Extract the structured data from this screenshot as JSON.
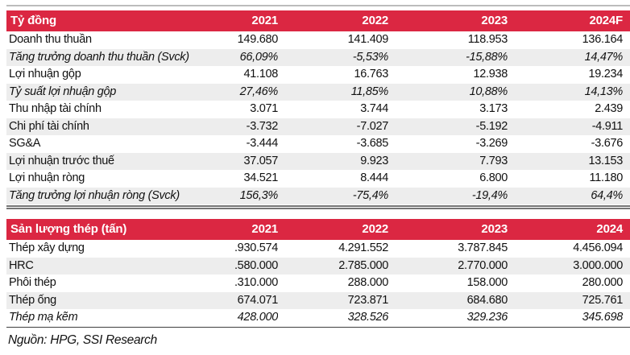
{
  "accent_color": "#db2742",
  "stripe_color": "#ededed",
  "tables": [
    {
      "header": {
        "label": "Tỷ đồng",
        "columns": [
          "2021",
          "2022",
          "2023",
          "2024F"
        ]
      },
      "rows": [
        {
          "label": "Doanh thu thuần",
          "italic": false,
          "cells": [
            "149.680",
            "141.409",
            "118.953",
            "136.164"
          ]
        },
        {
          "label": "Tăng trưởng doanh thu thuần (Svck)",
          "italic": true,
          "cells": [
            "66,09%",
            "-5,53%",
            "-15,88%",
            "14,47%"
          ]
        },
        {
          "label": "Lợi nhuận gộp",
          "italic": false,
          "cells": [
            "41.108",
            "16.763",
            "12.938",
            "19.234"
          ]
        },
        {
          "label": "Tỷ suất lợi nhuận gộp",
          "italic": true,
          "cells": [
            "27,46%",
            "11,85%",
            "10,88%",
            "14,13%"
          ]
        },
        {
          "label": "Thu nhập tài chính",
          "italic": false,
          "cells": [
            "3.071",
            "3.744",
            "3.173",
            "2.439"
          ]
        },
        {
          "label": "Chi phí tài chính",
          "italic": false,
          "cells": [
            "-3.732",
            "-7.027",
            "-5.192",
            "-4.911"
          ]
        },
        {
          "label": "SG&A",
          "italic": false,
          "cells": [
            "-3.444",
            "-3.685",
            "-3.269",
            "-3.676"
          ]
        },
        {
          "label": "Lợi nhuận trước thuế",
          "italic": false,
          "cells": [
            "37.057",
            "9.923",
            "7.793",
            "13.153"
          ]
        },
        {
          "label": "Lợi nhuận ròng",
          "italic": false,
          "cells": [
            "34.521",
            "8.444",
            "6.800",
            "11.180"
          ]
        },
        {
          "label": "Tăng trưởng lợi nhuận ròng (Svck)",
          "italic": true,
          "cells": [
            "156,3%",
            "-75,4%",
            "-19,4%",
            "64,4%"
          ]
        }
      ]
    },
    {
      "header": {
        "label": "Sản lượng thép (tấn)",
        "columns": [
          "2021",
          "2022",
          "2023",
          "2024"
        ]
      },
      "rows": [
        {
          "label": "Thép xây dựng",
          "italic": false,
          "cells": [
            ".930.574",
            "4.291.552",
            "3.787.845",
            "4.456.094"
          ]
        },
        {
          "label": "HRC",
          "italic": false,
          "cells": [
            ".580.000",
            "2.785.000",
            "2.770.000",
            "3.000.000"
          ]
        },
        {
          "label": "Phôi thép",
          "italic": false,
          "cells": [
            ".310.000",
            "288.000",
            "158.000",
            "280.000"
          ]
        },
        {
          "label": "Thép ống",
          "italic": false,
          "cells": [
            "674.071",
            "723.871",
            "684.680",
            "725.761"
          ]
        },
        {
          "label": "Thép mạ kẽm",
          "italic": true,
          "cells": [
            "428.000",
            "328.526",
            "329.236",
            "345.698"
          ]
        }
      ]
    }
  ],
  "source_note": "Nguồn: HPG, SSI Research"
}
